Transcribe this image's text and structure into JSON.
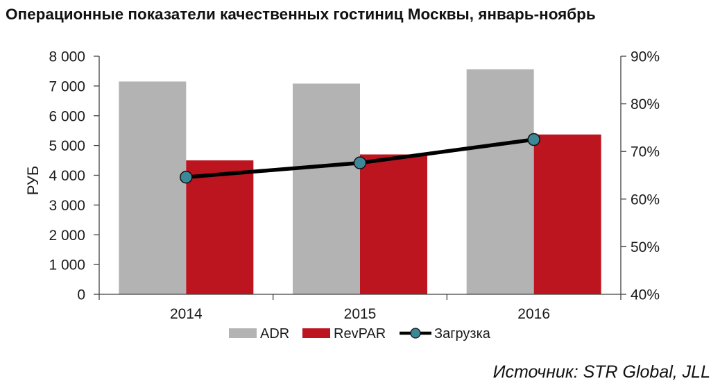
{
  "title": "Операционные показатели качественных гостиниц Москвы, январь-ноябрь",
  "source": "Источник: STR Global, JLL",
  "colors": {
    "adr": "#b3b3b3",
    "revpar": "#bd1520",
    "load_line": "#000000",
    "load_marker": "#3d8896"
  },
  "chart_data": {
    "type": "bar",
    "categories": [
      "2014",
      "2015",
      "2016"
    ],
    "series": [
      {
        "name": "ADR",
        "type": "bar",
        "axis": "left",
        "values": [
          7150,
          7080,
          7560
        ]
      },
      {
        "name": "RevPAR",
        "type": "bar",
        "axis": "left",
        "values": [
          4500,
          4700,
          5370
        ]
      },
      {
        "name": "Загрузка",
        "type": "line",
        "axis": "right",
        "values": [
          64.6,
          67.6,
          72.5
        ]
      }
    ],
    "ylabel": "РУБ",
    "ylim": [
      0,
      8000
    ],
    "yticks": [
      0,
      1000,
      2000,
      3000,
      4000,
      5000,
      6000,
      7000,
      8000
    ],
    "ytick_labels": [
      "0",
      "1 000",
      "2 000",
      "3 000",
      "4 000",
      "5 000",
      "6 000",
      "7 000",
      "8 000"
    ],
    "y2lim": [
      40,
      90
    ],
    "y2ticks": [
      40,
      50,
      60,
      70,
      80,
      90
    ],
    "y2tick_labels": [
      "40%",
      "50%",
      "60%",
      "70%",
      "80%",
      "90%"
    ],
    "grid": false,
    "legend": "bottom"
  }
}
